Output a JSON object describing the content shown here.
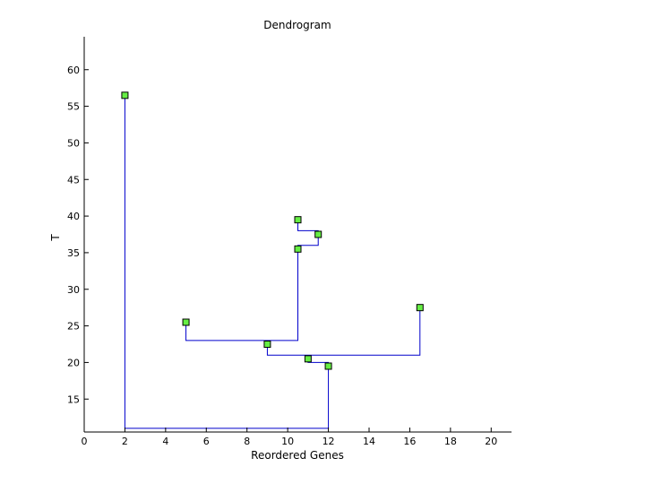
{
  "chart_data": {
    "type": "dendrogram",
    "title": "Dendrogram",
    "xlabel": "Reordered Genes",
    "ylabel": "T",
    "xlim": [
      0,
      21
    ],
    "ylim": [
      10.5,
      64.5
    ],
    "x_ticks": [
      0,
      2,
      4,
      6,
      8,
      10,
      12,
      14,
      16,
      18,
      20
    ],
    "y_ticks": [
      15,
      20,
      25,
      30,
      35,
      40,
      45,
      50,
      55,
      60
    ],
    "grid": false,
    "line_color": "#0000cc",
    "marker_color": "#66ee44",
    "nodes": [
      {
        "x": 2,
        "y": 56.5
      },
      {
        "x": 5,
        "y": 25.5
      },
      {
        "x": 9,
        "y": 22.5
      },
      {
        "x": 10.5,
        "y": 39.5
      },
      {
        "x": 10.5,
        "y": 35.5
      },
      {
        "x": 11,
        "y": 20.5
      },
      {
        "x": 11.5,
        "y": 37.5
      },
      {
        "x": 12,
        "y": 19.5
      },
      {
        "x": 16.5,
        "y": 27.5
      }
    ],
    "links": [
      {
        "left": [
          2,
          56.5
        ],
        "right": [
          12,
          19.5
        ],
        "height": 11
      },
      {
        "left": [
          9,
          22.5
        ],
        "right": [
          16.5,
          27.5
        ],
        "height": 21
      },
      {
        "left": [
          5,
          25.5
        ],
        "right": [
          10.5,
          35.5
        ],
        "height": 23
      },
      {
        "left": [
          11,
          20.5
        ],
        "right": [
          12,
          19.5
        ],
        "height": 20
      },
      {
        "left": [
          10.5,
          35.5
        ],
        "right": [
          11.5,
          37.5
        ],
        "height": 36
      },
      {
        "left": [
          10.5,
          39.5
        ],
        "right": [
          11.5,
          37.5
        ],
        "height": 38
      }
    ]
  }
}
